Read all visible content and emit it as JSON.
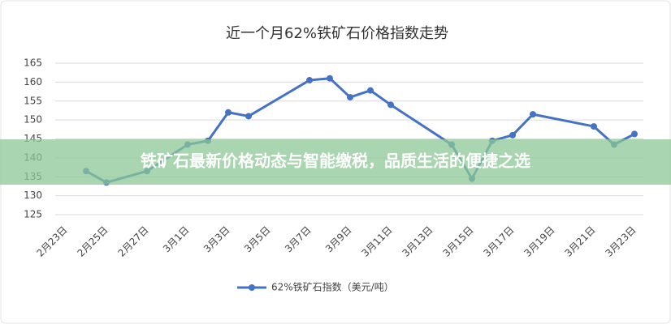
{
  "chart_data": {
    "type": "line",
    "title": "近一个月62%铁矿石价格指数走势",
    "categories": [
      "2月23日",
      null,
      "2月25日",
      null,
      "2月27日",
      null,
      "3月1日",
      null,
      "3月3日",
      null,
      "3月5日",
      null,
      "3月7日",
      null,
      "3月9日",
      null,
      "3月11日",
      null,
      "3月13日",
      null,
      "3月15日",
      null,
      "3月17日",
      null,
      "3月19日",
      null,
      "3月21日",
      null,
      "3月23日"
    ],
    "series": [
      {
        "name": "62%铁矿石指数（美元/吨）",
        "color": "#4472c4",
        "values": [
          null,
          136.5,
          133.5,
          null,
          136.5,
          null,
          143.5,
          144.5,
          152,
          151,
          null,
          null,
          160.5,
          161,
          156,
          157.8,
          154,
          null,
          null,
          143.5,
          134.5,
          144.5,
          146,
          151.5,
          null,
          null,
          148.3,
          143.5,
          146.3
        ]
      }
    ],
    "ylim": [
      125,
      165
    ],
    "yticks": [
      125,
      130,
      135,
      140,
      145,
      150,
      155,
      160,
      165
    ],
    "grid": true
  },
  "banner": "铁矿石最新价格动态与智能缴税，品质生活的便捷之选"
}
